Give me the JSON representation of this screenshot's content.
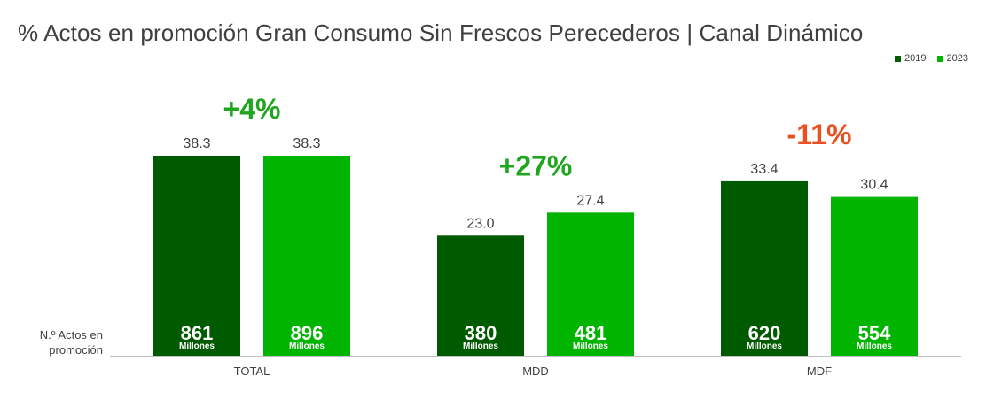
{
  "title": "% Actos en promoción Gran Consumo Sin Frescos Perecederos | Canal Dinámico",
  "row_label_line1": "N.º Actos en",
  "row_label_line2": "promoción",
  "colors": {
    "2019": "#005a00",
    "2023": "#00b400",
    "positive_change": "#20a520",
    "negative_change": "#e8501f",
    "text": "#404040",
    "axis": "#bfbfbf"
  },
  "chart_data": {
    "type": "bar",
    "title": "% Actos en promoción Gran Consumo Sin Frescos Perecederos | Canal Dinámico",
    "categories": [
      "TOTAL",
      "MDD",
      "MDF"
    ],
    "series": [
      {
        "name": "2019",
        "values": [
          38.3,
          23.0,
          33.4
        ],
        "labels": [
          "38.3",
          "23.0",
          "33.4"
        ],
        "count_values": [
          "861",
          "380",
          "620"
        ]
      },
      {
        "name": "2023",
        "values": [
          38.3,
          27.4,
          30.4
        ],
        "labels": [
          "38.3",
          "27.4",
          "30.4"
        ],
        "count_values": [
          "896",
          "481",
          "554"
        ]
      }
    ],
    "count_unit": "Millones",
    "changes": [
      "+4%",
      "+27%",
      "-11%"
    ],
    "ylim": [
      0,
      46
    ],
    "grid": false,
    "legend_position": "top-right",
    "xlabel": "",
    "ylabel": ""
  }
}
